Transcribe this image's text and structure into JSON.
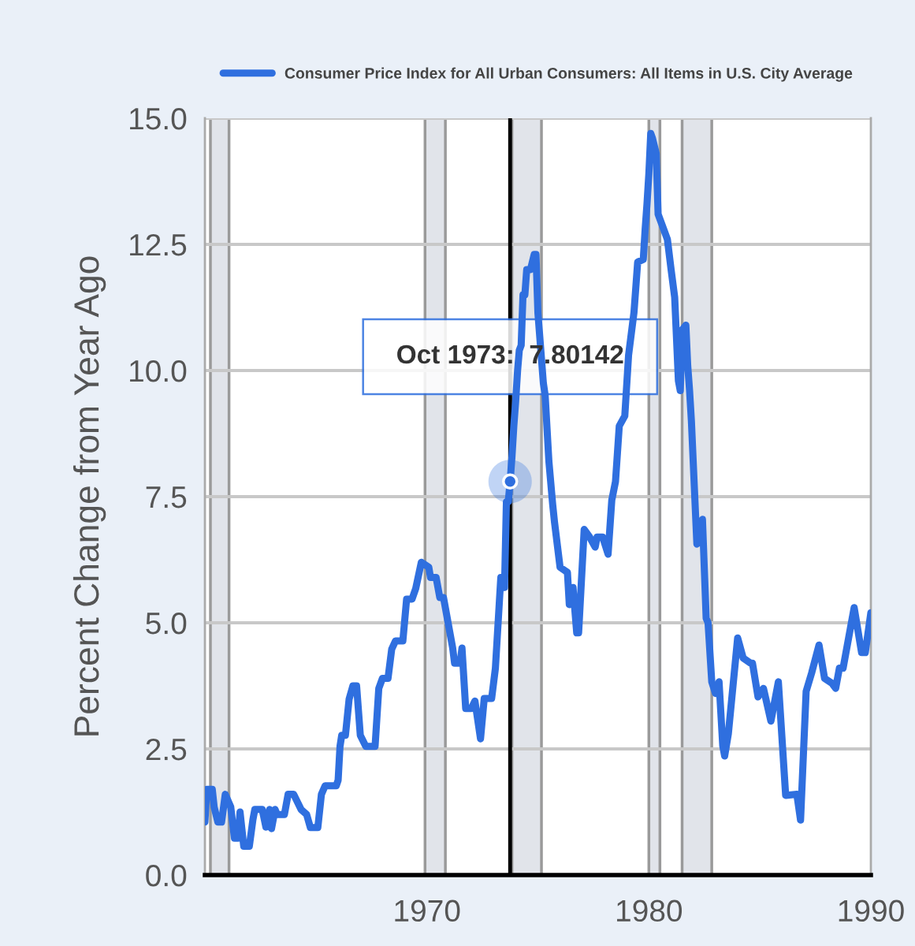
{
  "chart_data": {
    "type": "line",
    "ylabel": "Percent Change from Year Ago",
    "x": [
      "1960-01",
      "1960-02",
      "1960-05",
      "1960-06",
      "1960-08",
      "1960-10",
      "1960-12",
      "1961-03",
      "1961-05",
      "1961-07",
      "1961-08",
      "1961-10",
      "1962-01",
      "1962-03",
      "1962-04",
      "1962-08",
      "1962-10",
      "1962-12",
      "1963-01",
      "1963-03",
      "1963-04",
      "1963-08",
      "1963-10",
      "1964-01",
      "1964-05",
      "1964-08",
      "1964-10",
      "1965-02",
      "1965-04",
      "1965-06",
      "1965-12",
      "1966-01",
      "1966-02",
      "1966-03",
      "1966-05",
      "1966-07",
      "1966-09",
      "1966-11",
      "1967-01",
      "1967-04",
      "1967-09",
      "1967-11",
      "1968-01",
      "1968-04",
      "1968-06",
      "1968-08",
      "1968-12",
      "1969-02",
      "1969-05",
      "1969-07",
      "1969-10",
      "1970-02",
      "1970-03",
      "1970-06",
      "1970-08",
      "1970-10",
      "1971-03",
      "1971-04",
      "1971-07",
      "1971-08",
      "1971-10",
      "1972-01",
      "1972-03",
      "1972-06",
      "1972-08",
      "1972-12",
      "1973-02",
      "1973-05",
      "1973-06",
      "1973-07",
      "1973-08",
      "1973-09",
      "1973-10",
      "1973-11",
      "1973-12",
      "1974-01",
      "1974-02",
      "1974-03",
      "1974-04",
      "1974-05",
      "1974-06",
      "1974-07",
      "1974-09",
      "1974-11",
      "1974-12",
      "1975-01",
      "1975-04",
      "1975-05",
      "1975-07",
      "1975-09",
      "1975-10",
      "1976-01",
      "1976-05",
      "1976-06",
      "1976-08",
      "1976-10",
      "1976-11",
      "1977-02",
      "1977-05",
      "1977-08",
      "1977-09",
      "1977-12",
      "1978-03",
      "1978-05",
      "1978-07",
      "1978-09",
      "1978-12",
      "1979-02",
      "1979-05",
      "1979-07",
      "1979-10",
      "1979-11",
      "1979-12",
      "1980-01",
      "1980-02",
      "1980-03",
      "1980-05",
      "1980-06",
      "1980-08",
      "1980-11",
      "1981-01",
      "1981-03",
      "1981-05",
      "1981-06",
      "1981-07",
      "1981-09",
      "1981-10",
      "1981-11",
      "1981-12",
      "1982-03",
      "1982-04",
      "1982-06",
      "1982-08",
      "1982-09",
      "1982-11",
      "1983-01",
      "1983-03",
      "1983-05",
      "1983-06",
      "1983-08",
      "1984-01",
      "1984-04",
      "1984-08",
      "1984-09",
      "1984-12",
      "1985-03",
      "1985-07",
      "1985-11",
      "1986-03",
      "1986-09",
      "1986-11",
      "1987-02",
      "1987-05",
      "1987-09",
      "1987-12",
      "1988-04",
      "1988-06",
      "1988-08",
      "1988-10",
      "1989-04",
      "1989-08",
      "1989-10",
      "1990-01"
    ],
    "series": [
      {
        "name": "Consumer Price Index for All Urban Consumers: All Items in U.S. City Average",
        "color": "#2f6fdf",
        "values": [
          1.05,
          1.7,
          1.7,
          1.35,
          1.05,
          1.05,
          1.6,
          1.35,
          0.73,
          0.73,
          1.25,
          0.57,
          0.57,
          1.1,
          1.3,
          1.3,
          0.95,
          1.3,
          0.92,
          1.3,
          1.2,
          1.2,
          1.6,
          1.6,
          1.3,
          1.2,
          0.94,
          0.94,
          1.6,
          1.77,
          1.77,
          1.88,
          2.55,
          2.77,
          2.77,
          3.49,
          3.75,
          3.75,
          2.77,
          2.55,
          2.55,
          3.7,
          3.9,
          3.9,
          4.48,
          4.64,
          4.64,
          5.47,
          5.47,
          5.68,
          6.2,
          6.1,
          5.9,
          5.9,
          5.5,
          5.5,
          4.5,
          4.2,
          4.2,
          4.5,
          3.3,
          3.3,
          3.45,
          2.7,
          3.5,
          3.5,
          4.1,
          5.9,
          5.9,
          5.7,
          7.4,
          7.4,
          7.8,
          8.3,
          8.9,
          9.4,
          10.0,
          10.4,
          10.5,
          11.5,
          11.5,
          12.0,
          12.0,
          12.3,
          12.3,
          11.15,
          9.75,
          9.5,
          8.2,
          7.35,
          7.0,
          6.1,
          6.0,
          5.36,
          5.7,
          4.8,
          4.8,
          6.85,
          6.7,
          6.5,
          6.7,
          6.7,
          6.36,
          7.43,
          7.8,
          8.9,
          9.1,
          10.3,
          11.15,
          12.15,
          12.2,
          12.8,
          13.3,
          13.9,
          14.7,
          14.6,
          14.3,
          13.1,
          12.9,
          12.6,
          12.0,
          11.45,
          9.8,
          9.6,
          10.8,
          10.9,
          10.1,
          9.6,
          9.0,
          6.56,
          6.6,
          7.05,
          5.09,
          5.0,
          3.83,
          3.6,
          3.83,
          2.56,
          2.36,
          2.8,
          4.7,
          4.3,
          4.2,
          4.2,
          3.53,
          3.7,
          3.05,
          3.83,
          1.58,
          1.6,
          1.09,
          3.64,
          4.0,
          4.56,
          3.9,
          3.8,
          3.7,
          4.1,
          4.1,
          5.3,
          4.41,
          4.41,
          5.2
        ]
      }
    ],
    "xlim": [
      "1960-01",
      "1990-01"
    ],
    "xticks": [
      "1970",
      "1980",
      "1990"
    ],
    "ylim": [
      0,
      15
    ],
    "yticks": [
      {
        "value": 0,
        "label": "0.0"
      },
      2.5,
      {
        "value": 5,
        "label": "5.0"
      },
      7.5,
      {
        "value": 10,
        "label": "10.0"
      },
      12.5,
      {
        "value": 15,
        "label": "15.0"
      }
    ],
    "grid": "y",
    "legend": "top",
    "bands": [
      {
        "axis": "x",
        "from": "1960-04",
        "to": "1961-02",
        "color": "#e1e4ea"
      },
      {
        "axis": "x",
        "from": "1969-12",
        "to": "1970-11",
        "color": "#e1e4ea"
      },
      {
        "axis": "x",
        "from": "1973-11",
        "to": "1975-03",
        "color": "#e1e4ea"
      },
      {
        "axis": "x",
        "from": "1980-01",
        "to": "1980-07",
        "color": "#e1e4ea"
      },
      {
        "axis": "x",
        "from": "1981-07",
        "to": "1982-11",
        "color": "#e1e4ea"
      }
    ],
    "ref_lines": [
      {
        "axis": "x",
        "value": "1973-10",
        "color": "#000000",
        "label": "Oct 1973:  7.80142"
      }
    ]
  }
}
